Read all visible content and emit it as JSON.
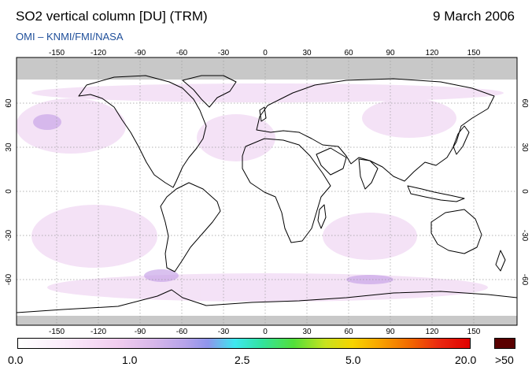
{
  "header": {
    "title": "SO2 vertical column [DU] (TRM)",
    "date": "9 March 2006",
    "credit": "OMI  –  KNMI/FMI/NASA"
  },
  "map": {
    "lon_ticks": [
      "-150",
      "-120",
      "-90",
      "-60",
      "-30",
      "0",
      "30",
      "60",
      "90",
      "120",
      "150"
    ],
    "lat_ticks": [
      "60",
      "30",
      "0",
      "-30",
      "-60"
    ],
    "colors": {
      "polar_night": "#c8c8c8",
      "grid": "#9a9a9a",
      "coast": "#000000",
      "tint_light": "#f3dff6",
      "tint_purple": "#c9a7e8"
    }
  },
  "colorbar": {
    "labels": [
      "0.0",
      "1.0",
      "2.5",
      "5.0",
      "20.0"
    ],
    "overflow_label": ">50",
    "overflow_color": "#5a0000"
  }
}
